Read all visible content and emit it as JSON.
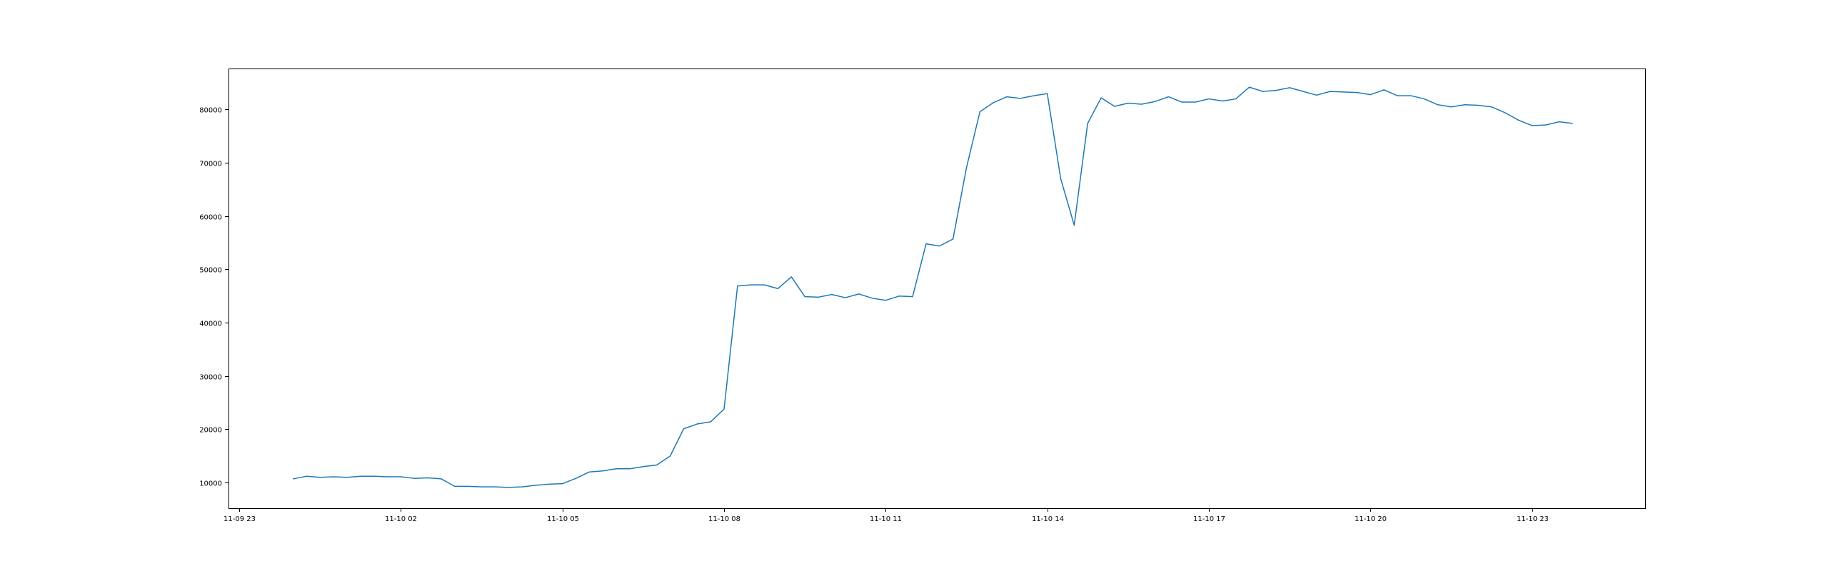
{
  "chart_data": {
    "type": "line",
    "title": "",
    "xlabel": "",
    "ylabel": "",
    "x_axis": {
      "range_hours": [
        -1.2,
        25.1
      ],
      "ticks": [
        {
          "hour": -1,
          "label": "11-09 23"
        },
        {
          "hour": 2,
          "label": "11-10 02"
        },
        {
          "hour": 5,
          "label": "11-10 05"
        },
        {
          "hour": 8,
          "label": "11-10 08"
        },
        {
          "hour": 11,
          "label": "11-10 11"
        },
        {
          "hour": 14,
          "label": "11-10 14"
        },
        {
          "hour": 17,
          "label": "11-10 17"
        },
        {
          "hour": 20,
          "label": "11-10 20"
        },
        {
          "hour": 23,
          "label": "11-10 23"
        }
      ]
    },
    "y_axis": {
      "range": [
        5200,
        87700
      ],
      "ticks": [
        10000,
        20000,
        30000,
        40000,
        50000,
        60000,
        70000,
        80000
      ]
    },
    "grid": false,
    "legend": "none",
    "series_color": "#1f77b4",
    "series": [
      {
        "x": [
          0.0,
          0.25,
          0.5,
          0.75,
          1.0,
          1.25,
          1.5,
          1.75,
          2.0,
          2.25,
          2.5,
          2.75,
          3.0,
          3.25,
          3.5,
          3.75,
          4.0,
          4.25,
          4.5,
          4.75,
          5.0,
          5.25,
          5.5,
          5.75,
          6.0,
          6.25,
          6.5,
          6.75,
          7.0,
          7.25,
          7.5,
          7.75,
          8.0,
          8.25,
          8.5,
          8.75,
          9.0,
          9.25,
          9.5,
          9.75,
          10.0,
          10.25,
          10.5,
          10.75,
          11.0,
          11.25,
          11.5,
          11.75,
          12.0,
          12.25,
          12.5,
          12.75,
          13.0,
          13.25,
          13.5,
          13.75,
          14.0,
          14.25,
          14.5,
          14.75,
          15.0,
          15.25,
          15.5,
          15.75,
          16.0,
          16.25,
          16.5,
          16.75,
          17.0,
          17.25,
          17.5,
          17.75,
          18.0,
          18.25,
          18.5,
          18.75,
          19.0,
          19.25,
          19.5,
          19.75,
          20.0,
          20.25,
          20.5,
          20.75,
          21.0,
          21.25,
          21.5,
          21.75,
          22.0,
          22.25,
          22.5,
          22.75,
          23.0,
          23.25,
          23.5,
          23.75
        ],
        "y": [
          10700,
          11200,
          11000,
          11100,
          11000,
          11200,
          11200,
          11100,
          11100,
          10800,
          10900,
          10700,
          9300,
          9300,
          9200,
          9200,
          9100,
          9200,
          9500,
          9700,
          9800,
          10800,
          12000,
          12200,
          12600,
          12600,
          13000,
          13300,
          15000,
          20100,
          21000,
          21400,
          23800,
          46900,
          47100,
          47100,
          46400,
          48600,
          44900,
          44800,
          45300,
          44700,
          45400,
          44600,
          44200,
          45000,
          44900,
          54800,
          54400,
          55700,
          69100,
          79600,
          81300,
          82400,
          82100,
          82600,
          83000,
          67000,
          58300,
          77400,
          82200,
          80600,
          81200,
          81000,
          81500,
          82400,
          81400,
          81400,
          82000,
          81600,
          82000,
          84200,
          83400,
          83600,
          84100,
          83400,
          82700,
          83400,
          83300,
          83200,
          82800,
          83700,
          82600,
          82600,
          82000,
          80900,
          80500,
          80900,
          80800,
          80500,
          79400,
          78000,
          77000,
          77100,
          77700,
          77400
        ]
      }
    ]
  }
}
